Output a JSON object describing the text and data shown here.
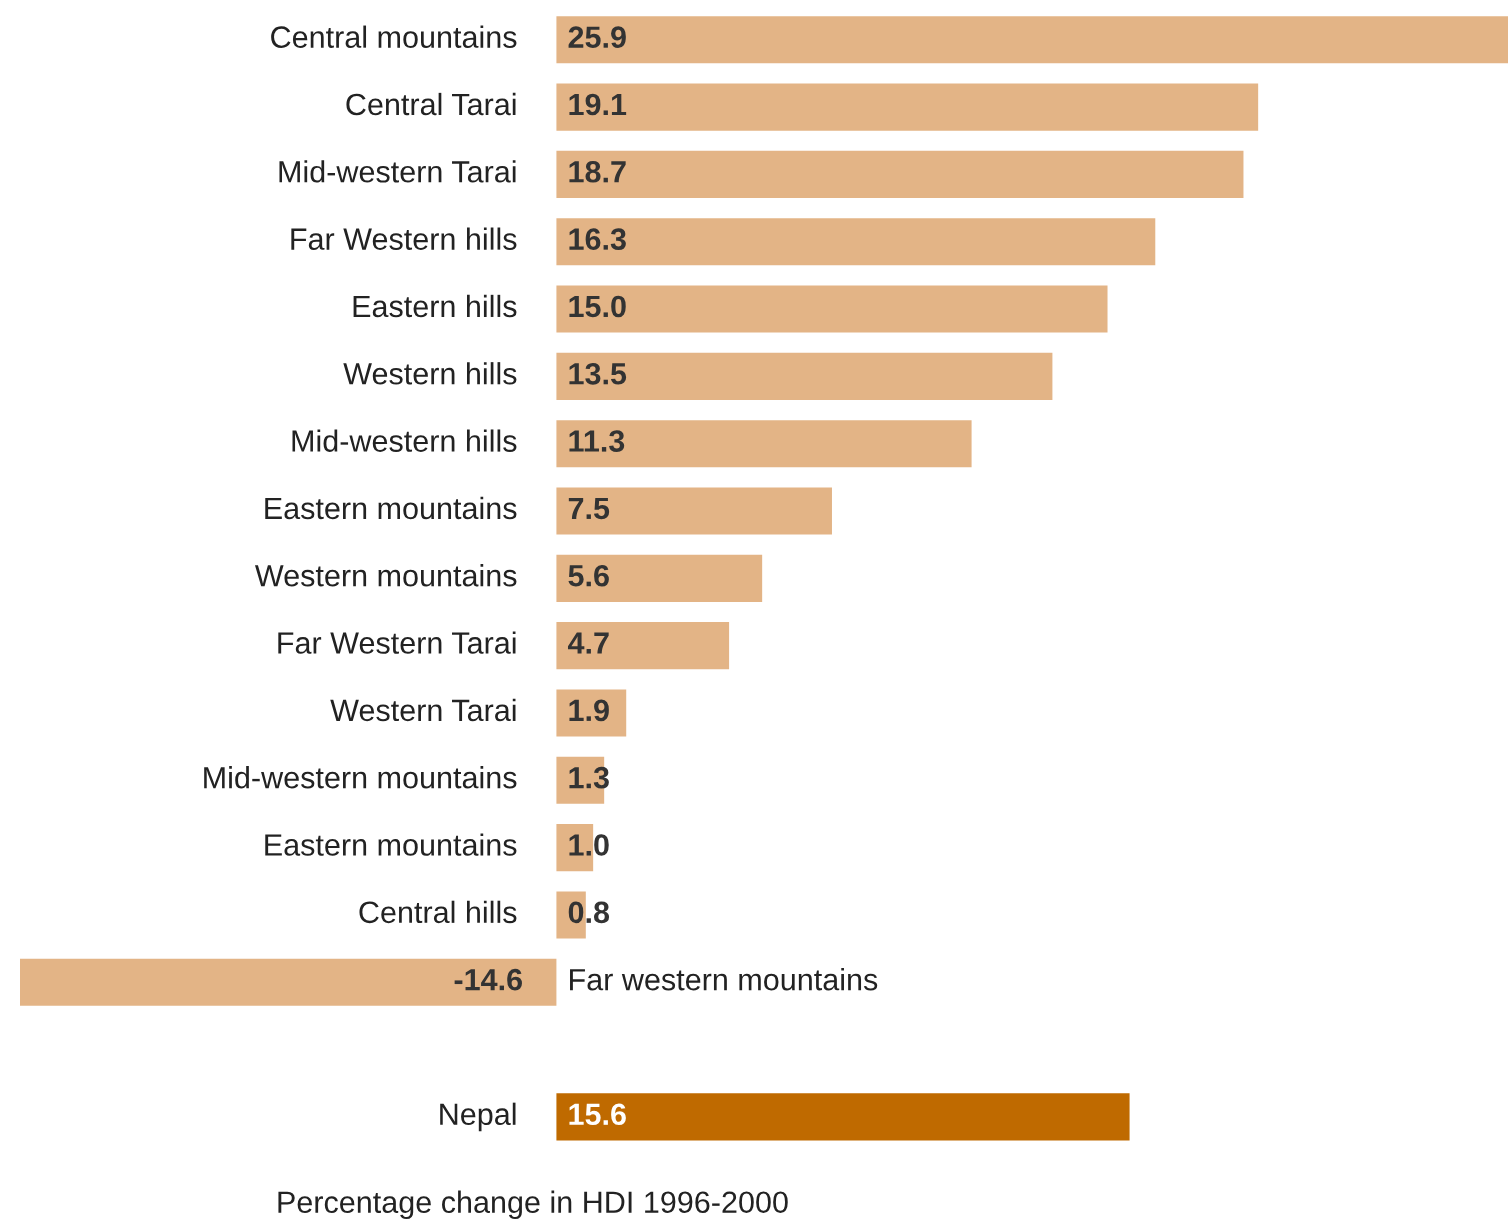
{
  "chart_data": {
    "type": "bar",
    "orientation": "horizontal",
    "xlabel": "Percentage change in HDI 1996-2000",
    "categories": [
      "Central mountains",
      "Central Tarai",
      "Mid-western Tarai",
      "Far Western hills",
      "Eastern hills",
      "Western hills",
      "Mid-western hills",
      "Eastern mountains",
      "Western mountains",
      "Far Western Tarai",
      "Western Tarai",
      "Mid-western mountains",
      "Eastern mountains",
      "Central hills",
      "Far western mountains",
      null,
      "Nepal"
    ],
    "values": [
      25.9,
      19.1,
      18.7,
      16.3,
      15.0,
      13.5,
      11.3,
      7.5,
      5.6,
      4.7,
      1.9,
      1.3,
      1.0,
      0.8,
      -14.6,
      null,
      15.6
    ],
    "value_labels": [
      "25.9",
      "19.1",
      "18.7",
      "16.3",
      "15.0",
      "13.5",
      "11.3",
      "7.5",
      "5.6",
      "4.7",
      "1.9",
      "1.3",
      "1.0",
      "0.8",
      "-14.6",
      null,
      "15.6"
    ],
    "colors": [
      "#e3b486",
      "#e3b486",
      "#e3b486",
      "#e3b486",
      "#e3b486",
      "#e3b486",
      "#e3b486",
      "#e3b486",
      "#e3b486",
      "#e3b486",
      "#e3b486",
      "#e3b486",
      "#e3b486",
      "#e3b486",
      "#e3b486",
      "#e3b486",
      "#bf6a00"
    ],
    "legend": false
  }
}
